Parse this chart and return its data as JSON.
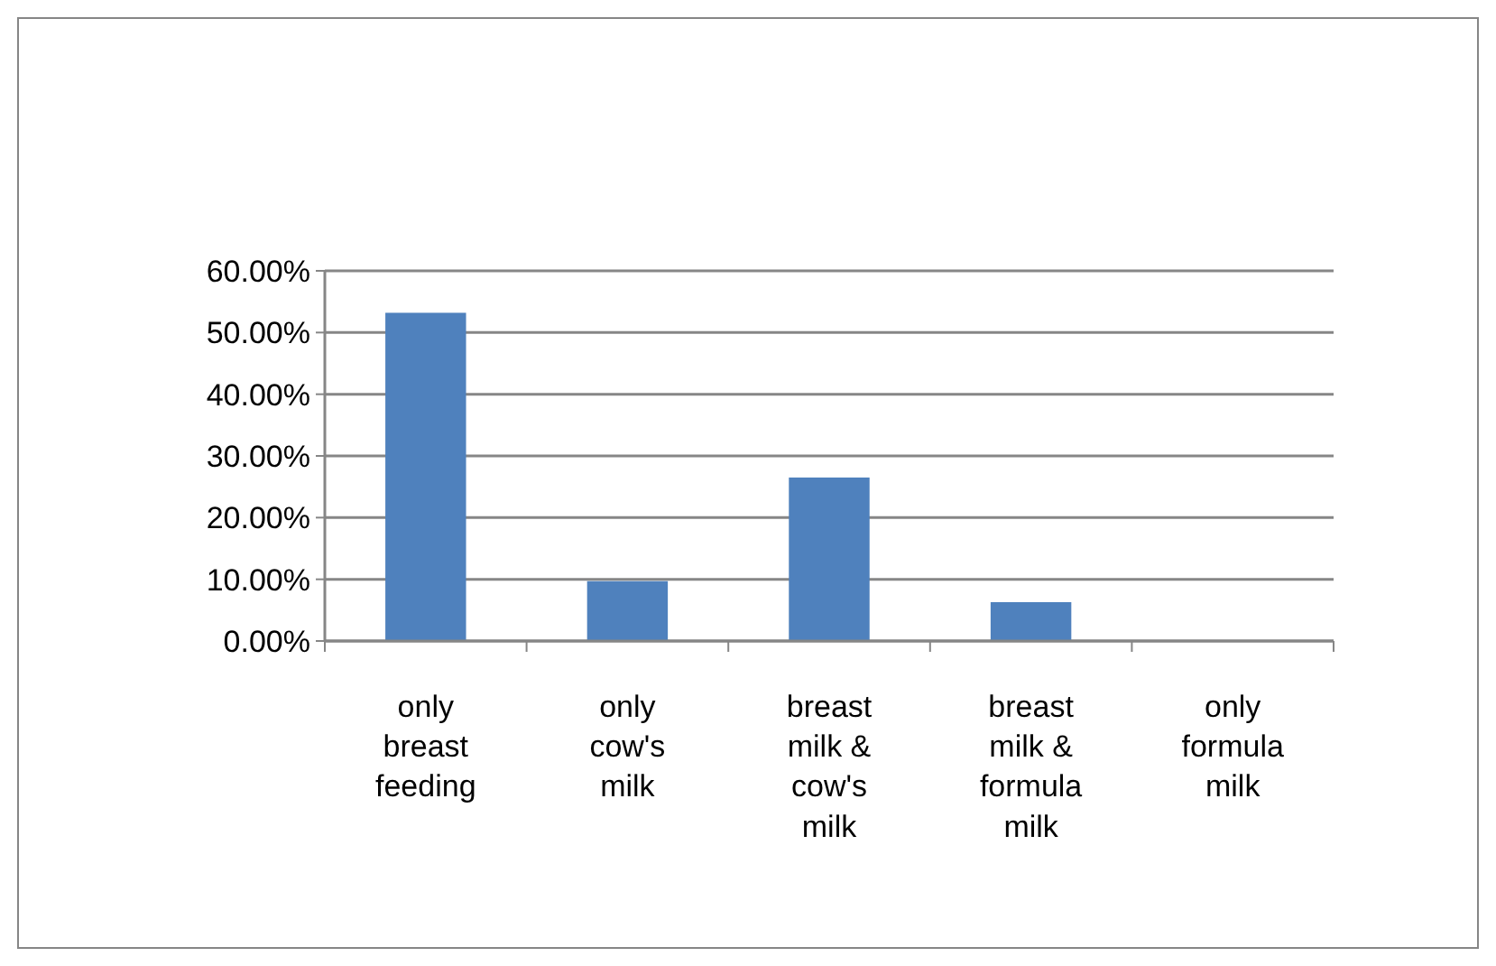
{
  "chart_data": {
    "type": "bar",
    "categories": [
      "only breast feeding",
      "only cow's milk",
      "breast milk & cow's milk",
      "breast milk & formula milk",
      "only formula milk"
    ],
    "values": [
      53.2,
      9.7,
      26.5,
      6.3,
      0
    ],
    "color": "#4f81bd",
    "ylim": [
      0,
      60
    ],
    "yticks": [
      {
        "value": 0,
        "label": "0.00%"
      },
      {
        "value": 10,
        "label": "10.00%"
      },
      {
        "value": 20,
        "label": "20.00%"
      },
      {
        "value": 30,
        "label": "30.00%"
      },
      {
        "value": 40,
        "label": "40.00%"
      },
      {
        "value": 50,
        "label": "50.00%"
      },
      {
        "value": 60,
        "label": "60.00%"
      }
    ],
    "grid": "y"
  }
}
